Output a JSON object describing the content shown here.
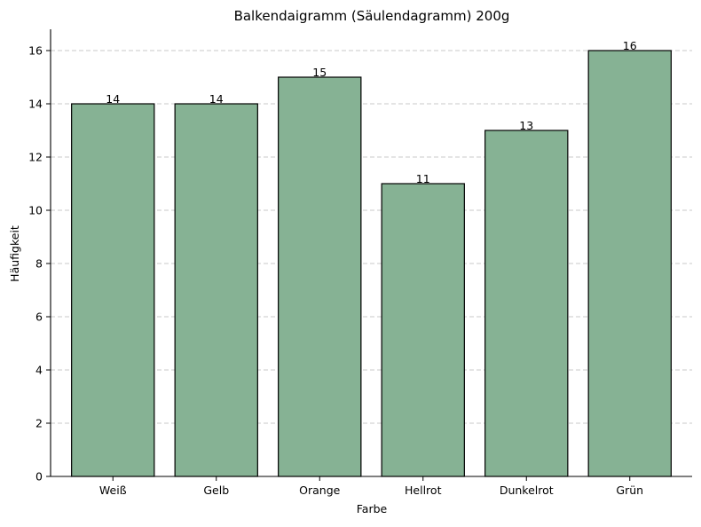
{
  "chart_data": {
    "type": "bar",
    "title": "Balkendaigramm (Säulendagramm) 200g",
    "xlabel": "Farbe",
    "ylabel": "Häufigkeit",
    "categories": [
      "Weiß",
      "Gelb",
      "Orange",
      "Hellrot",
      "Dunkelrot",
      "Grün"
    ],
    "values": [
      14,
      14,
      15,
      11,
      13,
      16
    ],
    "ylim": [
      0,
      16.8
    ],
    "yticks": [
      0,
      2,
      4,
      6,
      8,
      10,
      12,
      14,
      16
    ],
    "grid": "horizontal-dashed",
    "data_labels": true,
    "bar_color": "#86b294",
    "bar_edge_color": "#000000",
    "grid_color": "#c8c8c8"
  }
}
